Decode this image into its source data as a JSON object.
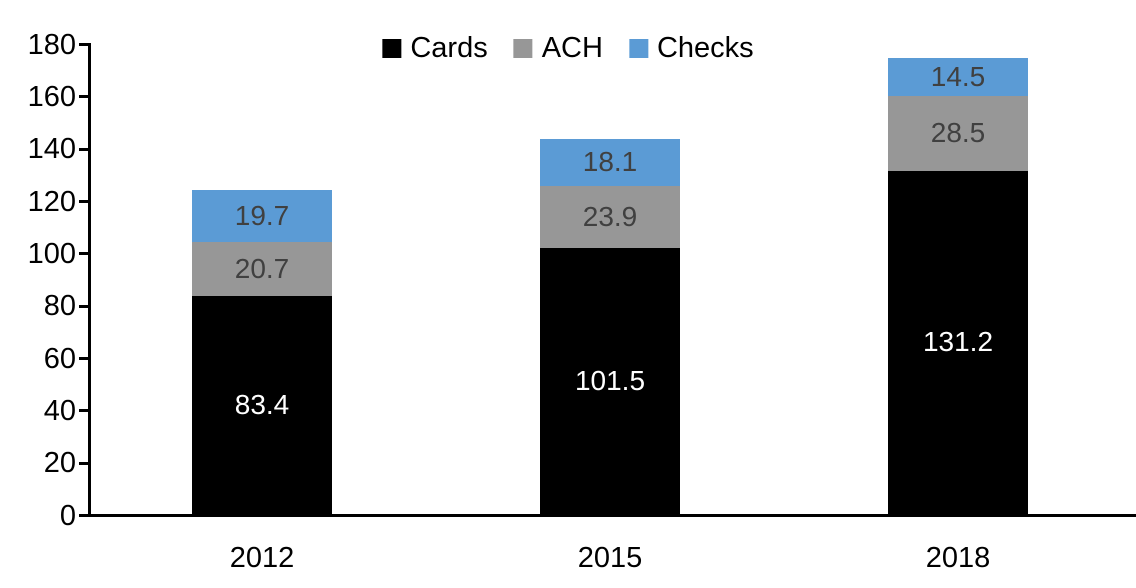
{
  "chart_data": {
    "type": "bar",
    "stacked": true,
    "title": "",
    "xlabel": "",
    "ylabel": "",
    "categories": [
      "2012",
      "2015",
      "2018"
    ],
    "series": [
      {
        "name": "Cards",
        "color": "#000000",
        "label_color": "#ffffff",
        "values": [
          83.4,
          101.5,
          131.2
        ]
      },
      {
        "name": "ACH",
        "color": "#979797",
        "label_color": "#404040",
        "values": [
          20.7,
          23.9,
          28.5
        ]
      },
      {
        "name": "Checks",
        "color": "#5B9BD5",
        "label_color": "#404040",
        "values": [
          19.7,
          18.1,
          14.5
        ]
      }
    ],
    "ylim": [
      0,
      180
    ],
    "ytick_step": 20,
    "ytick_labels": [
      "0",
      "20",
      "40",
      "60",
      "80",
      "100",
      "120",
      "140",
      "160",
      "180"
    ],
    "grid": false,
    "legend_position": "top-center",
    "axis_color": "#000000",
    "background_color": "#ffffff"
  }
}
